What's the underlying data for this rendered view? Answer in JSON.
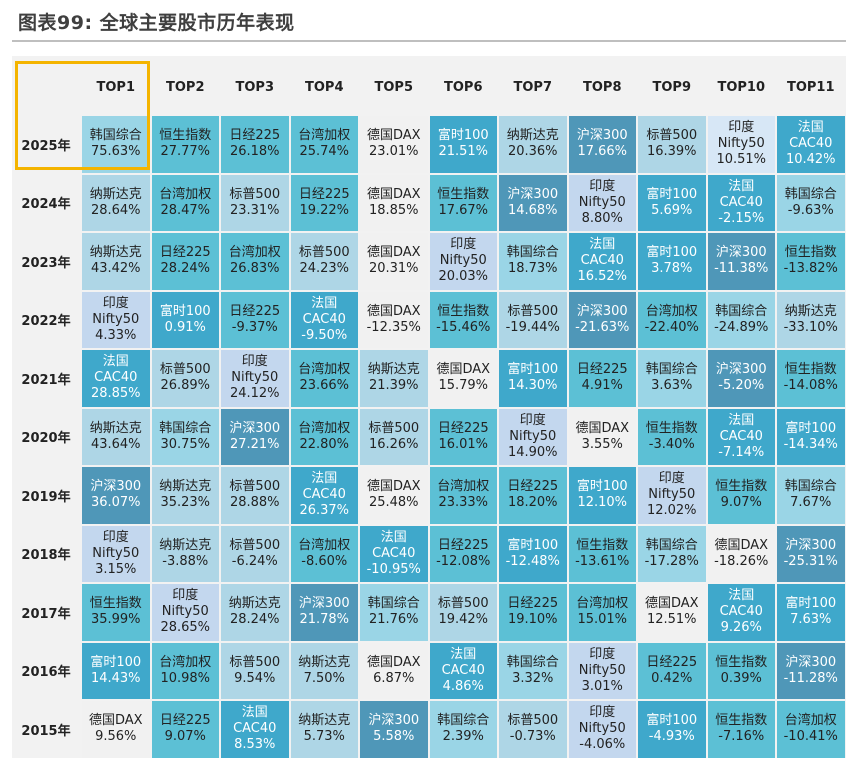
{
  "title": "图表99: 全球主要股市历年表现",
  "colors": {
    "level1": "#f1f1f1",
    "level2": "#d7e7f6",
    "level3": "#c3d7ee",
    "level4": "#aed6e6",
    "level5": "#9ad5e6",
    "level6": "#5cc0d5",
    "level7": "#3fa8cb",
    "level8": "#4f97b8",
    "level9": "#6b8fa8",
    "highlight": "#f4b400"
  },
  "chart_data": {
    "type": "table",
    "title": "图表99: 全球主要股市历年表现",
    "columns": [
      "TOP1",
      "TOP2",
      "TOP3",
      "TOP4",
      "TOP5",
      "TOP6",
      "TOP7",
      "TOP8",
      "TOP9",
      "TOP10",
      "TOP11"
    ],
    "highlighted_cell": {
      "year": "2025年",
      "column": "TOP1"
    },
    "rows": [
      {
        "year": "2025年",
        "cells": [
          {
            "lines": [
              "韩国综合",
              "75.63%"
            ],
            "color": "level5"
          },
          {
            "lines": [
              "恒生指数",
              "27.77%"
            ],
            "color": "level6"
          },
          {
            "lines": [
              "日经225",
              "26.18%"
            ],
            "color": "level6"
          },
          {
            "lines": [
              "台湾加权",
              "25.74%"
            ],
            "color": "level6"
          },
          {
            "lines": [
              "德国DAX",
              "23.01%"
            ],
            "color": "level1"
          },
          {
            "lines": [
              "富时100",
              "21.51%"
            ],
            "color": "level7"
          },
          {
            "lines": [
              "纳斯达克",
              "20.36%"
            ],
            "color": "level4"
          },
          {
            "lines": [
              "沪深300",
              "17.66%"
            ],
            "color": "level8"
          },
          {
            "lines": [
              "标普500",
              "16.39%"
            ],
            "color": "level4"
          },
          {
            "lines": [
              "印度",
              "Nifty50",
              "10.51%"
            ],
            "color": "level2"
          },
          {
            "lines": [
              "法国",
              "CAC40",
              "10.42%"
            ],
            "color": "level7"
          }
        ]
      },
      {
        "year": "2024年",
        "cells": [
          {
            "lines": [
              "纳斯达克",
              "28.64%"
            ],
            "color": "level4"
          },
          {
            "lines": [
              "台湾加权",
              "28.47%"
            ],
            "color": "level6"
          },
          {
            "lines": [
              "标普500",
              "23.31%"
            ],
            "color": "level4"
          },
          {
            "lines": [
              "日经225",
              "19.22%"
            ],
            "color": "level6"
          },
          {
            "lines": [
              "德国DAX",
              "18.85%"
            ],
            "color": "level1"
          },
          {
            "lines": [
              "恒生指数",
              "17.67%"
            ],
            "color": "level6"
          },
          {
            "lines": [
              "沪深300",
              "14.68%"
            ],
            "color": "level8"
          },
          {
            "lines": [
              "印度",
              "Nifty50",
              "8.80%"
            ],
            "color": "level3"
          },
          {
            "lines": [
              "富时100",
              "5.69%"
            ],
            "color": "level7"
          },
          {
            "lines": [
              "法国",
              "CAC40",
              "-2.15%"
            ],
            "color": "level7"
          },
          {
            "lines": [
              "韩国综合",
              "-9.63%"
            ],
            "color": "level5"
          }
        ]
      },
      {
        "year": "2023年",
        "cells": [
          {
            "lines": [
              "纳斯达克",
              "43.42%"
            ],
            "color": "level4"
          },
          {
            "lines": [
              "日经225",
              "28.24%"
            ],
            "color": "level6"
          },
          {
            "lines": [
              "台湾加权",
              "26.83%"
            ],
            "color": "level6"
          },
          {
            "lines": [
              "标普500",
              "24.23%"
            ],
            "color": "level4"
          },
          {
            "lines": [
              "德国DAX",
              "20.31%"
            ],
            "color": "level1"
          },
          {
            "lines": [
              "印度",
              "Nifty50",
              "20.03%"
            ],
            "color": "level3"
          },
          {
            "lines": [
              "韩国综合",
              "18.73%"
            ],
            "color": "level5"
          },
          {
            "lines": [
              "法国",
              "CAC40",
              "16.52%"
            ],
            "color": "level7"
          },
          {
            "lines": [
              "富时100",
              "3.78%"
            ],
            "color": "level7"
          },
          {
            "lines": [
              "沪深300",
              "-11.38%"
            ],
            "color": "level8"
          },
          {
            "lines": [
              "恒生指数",
              "-13.82%"
            ],
            "color": "level6"
          }
        ]
      },
      {
        "year": "2022年",
        "cells": [
          {
            "lines": [
              "印度",
              "Nifty50",
              "4.33%"
            ],
            "color": "level3"
          },
          {
            "lines": [
              "富时100",
              "0.91%"
            ],
            "color": "level7"
          },
          {
            "lines": [
              "日经225",
              "-9.37%"
            ],
            "color": "level6"
          },
          {
            "lines": [
              "法国",
              "CAC40",
              "-9.50%"
            ],
            "color": "level7"
          },
          {
            "lines": [
              "德国DAX",
              "-12.35%"
            ],
            "color": "level1"
          },
          {
            "lines": [
              "恒生指数",
              "-15.46%"
            ],
            "color": "level6"
          },
          {
            "lines": [
              "标普500",
              "-19.44%"
            ],
            "color": "level4"
          },
          {
            "lines": [
              "沪深300",
              "-21.63%"
            ],
            "color": "level8"
          },
          {
            "lines": [
              "台湾加权",
              "-22.40%"
            ],
            "color": "level6"
          },
          {
            "lines": [
              "韩国综合",
              "-24.89%"
            ],
            "color": "level5"
          },
          {
            "lines": [
              "纳斯达克",
              "-33.10%"
            ],
            "color": "level4"
          }
        ]
      },
      {
        "year": "2021年",
        "cells": [
          {
            "lines": [
              "法国",
              "CAC40",
              "28.85%"
            ],
            "color": "level7"
          },
          {
            "lines": [
              "标普500",
              "26.89%"
            ],
            "color": "level4"
          },
          {
            "lines": [
              "印度",
              "Nifty50",
              "24.12%"
            ],
            "color": "level3"
          },
          {
            "lines": [
              "台湾加权",
              "23.66%"
            ],
            "color": "level6"
          },
          {
            "lines": [
              "纳斯达克",
              "21.39%"
            ],
            "color": "level4"
          },
          {
            "lines": [
              "德国DAX",
              "15.79%"
            ],
            "color": "level1"
          },
          {
            "lines": [
              "富时100",
              "14.30%"
            ],
            "color": "level7"
          },
          {
            "lines": [
              "日经225",
              "4.91%"
            ],
            "color": "level6"
          },
          {
            "lines": [
              "韩国综合",
              "3.63%"
            ],
            "color": "level5"
          },
          {
            "lines": [
              "沪深300",
              "-5.20%"
            ],
            "color": "level8"
          },
          {
            "lines": [
              "恒生指数",
              "-14.08%"
            ],
            "color": "level6"
          }
        ]
      },
      {
        "year": "2020年",
        "cells": [
          {
            "lines": [
              "纳斯达克",
              "43.64%"
            ],
            "color": "level4"
          },
          {
            "lines": [
              "韩国综合",
              "30.75%"
            ],
            "color": "level5"
          },
          {
            "lines": [
              "沪深300",
              "27.21%"
            ],
            "color": "level8"
          },
          {
            "lines": [
              "台湾加权",
              "22.80%"
            ],
            "color": "level6"
          },
          {
            "lines": [
              "标普500",
              "16.26%"
            ],
            "color": "level4"
          },
          {
            "lines": [
              "日经225",
              "16.01%"
            ],
            "color": "level6"
          },
          {
            "lines": [
              "印度",
              "Nifty50",
              "14.90%"
            ],
            "color": "level3"
          },
          {
            "lines": [
              "德国DAX",
              "3.55%"
            ],
            "color": "level1"
          },
          {
            "lines": [
              "恒生指数",
              "-3.40%"
            ],
            "color": "level6"
          },
          {
            "lines": [
              "法国",
              "CAC40",
              "-7.14%"
            ],
            "color": "level7"
          },
          {
            "lines": [
              "富时100",
              "-14.34%"
            ],
            "color": "level7"
          }
        ]
      },
      {
        "year": "2019年",
        "cells": [
          {
            "lines": [
              "沪深300",
              "36.07%"
            ],
            "color": "level8"
          },
          {
            "lines": [
              "纳斯达克",
              "35.23%"
            ],
            "color": "level4"
          },
          {
            "lines": [
              "标普500",
              "28.88%"
            ],
            "color": "level4"
          },
          {
            "lines": [
              "法国",
              "CAC40",
              "26.37%"
            ],
            "color": "level7"
          },
          {
            "lines": [
              "德国DAX",
              "25.48%"
            ],
            "color": "level1"
          },
          {
            "lines": [
              "台湾加权",
              "23.33%"
            ],
            "color": "level6"
          },
          {
            "lines": [
              "日经225",
              "18.20%"
            ],
            "color": "level6"
          },
          {
            "lines": [
              "富时100",
              "12.10%"
            ],
            "color": "level7"
          },
          {
            "lines": [
              "印度",
              "Nifty50",
              "12.02%"
            ],
            "color": "level3"
          },
          {
            "lines": [
              "恒生指数",
              "9.07%"
            ],
            "color": "level6"
          },
          {
            "lines": [
              "韩国综合",
              "7.67%"
            ],
            "color": "level5"
          }
        ]
      },
      {
        "year": "2018年",
        "cells": [
          {
            "lines": [
              "印度",
              "Nifty50",
              "3.15%"
            ],
            "color": "level3"
          },
          {
            "lines": [
              "纳斯达克",
              "-3.88%"
            ],
            "color": "level4"
          },
          {
            "lines": [
              "标普500",
              "-6.24%"
            ],
            "color": "level4"
          },
          {
            "lines": [
              "台湾加权",
              "-8.60%"
            ],
            "color": "level6"
          },
          {
            "lines": [
              "法国",
              "CAC40",
              "-10.95%"
            ],
            "color": "level7"
          },
          {
            "lines": [
              "日经225",
              "-12.08%"
            ],
            "color": "level6"
          },
          {
            "lines": [
              "富时100",
              "-12.48%"
            ],
            "color": "level7"
          },
          {
            "lines": [
              "恒生指数",
              "-13.61%"
            ],
            "color": "level6"
          },
          {
            "lines": [
              "韩国综合",
              "-17.28%"
            ],
            "color": "level5"
          },
          {
            "lines": [
              "德国DAX",
              "-18.26%"
            ],
            "color": "level1"
          },
          {
            "lines": [
              "沪深300",
              "-25.31%"
            ],
            "color": "level8"
          }
        ]
      },
      {
        "year": "2017年",
        "cells": [
          {
            "lines": [
              "恒生指数",
              "35.99%"
            ],
            "color": "level6"
          },
          {
            "lines": [
              "印度",
              "Nifty50",
              "28.65%"
            ],
            "color": "level3"
          },
          {
            "lines": [
              "纳斯达克",
              "28.24%"
            ],
            "color": "level4"
          },
          {
            "lines": [
              "沪深300",
              "21.78%"
            ],
            "color": "level8"
          },
          {
            "lines": [
              "韩国综合",
              "21.76%"
            ],
            "color": "level5"
          },
          {
            "lines": [
              "标普500",
              "19.42%"
            ],
            "color": "level4"
          },
          {
            "lines": [
              "日经225",
              "19.10%"
            ],
            "color": "level6"
          },
          {
            "lines": [
              "台湾加权",
              "15.01%"
            ],
            "color": "level6"
          },
          {
            "lines": [
              "德国DAX",
              "12.51%"
            ],
            "color": "level1"
          },
          {
            "lines": [
              "法国",
              "CAC40",
              "9.26%"
            ],
            "color": "level7"
          },
          {
            "lines": [
              "富时100",
              "7.63%"
            ],
            "color": "level7"
          }
        ]
      },
      {
        "year": "2016年",
        "cells": [
          {
            "lines": [
              "富时100",
              "14.43%"
            ],
            "color": "level7"
          },
          {
            "lines": [
              "台湾加权",
              "10.98%"
            ],
            "color": "level6"
          },
          {
            "lines": [
              "标普500",
              "9.54%"
            ],
            "color": "level4"
          },
          {
            "lines": [
              "纳斯达克",
              "7.50%"
            ],
            "color": "level4"
          },
          {
            "lines": [
              "德国DAX",
              "6.87%"
            ],
            "color": "level1"
          },
          {
            "lines": [
              "法国",
              "CAC40",
              "4.86%"
            ],
            "color": "level7"
          },
          {
            "lines": [
              "韩国综合",
              "3.32%"
            ],
            "color": "level5"
          },
          {
            "lines": [
              "印度",
              "Nifty50",
              "3.01%"
            ],
            "color": "level3"
          },
          {
            "lines": [
              "日经225",
              "0.42%"
            ],
            "color": "level6"
          },
          {
            "lines": [
              "恒生指数",
              "0.39%"
            ],
            "color": "level6"
          },
          {
            "lines": [
              "沪深300",
              "-11.28%"
            ],
            "color": "level8"
          }
        ]
      },
      {
        "year": "2015年",
        "cells": [
          {
            "lines": [
              "德国DAX",
              "9.56%"
            ],
            "color": "level1"
          },
          {
            "lines": [
              "日经225",
              "9.07%"
            ],
            "color": "level6"
          },
          {
            "lines": [
              "法国",
              "CAC40",
              "8.53%"
            ],
            "color": "level7"
          },
          {
            "lines": [
              "纳斯达克",
              "5.73%"
            ],
            "color": "level4"
          },
          {
            "lines": [
              "沪深300",
              "5.58%"
            ],
            "color": "level8"
          },
          {
            "lines": [
              "韩国综合",
              "2.39%"
            ],
            "color": "level5"
          },
          {
            "lines": [
              "标普500",
              "-0.73%"
            ],
            "color": "level4"
          },
          {
            "lines": [
              "印度",
              "Nifty50",
              "-4.06%"
            ],
            "color": "level3"
          },
          {
            "lines": [
              "富时100",
              "-4.93%"
            ],
            "color": "level7"
          },
          {
            "lines": [
              "恒生指数",
              "-7.16%"
            ],
            "color": "level6"
          },
          {
            "lines": [
              "台湾加权",
              "-10.41%"
            ],
            "color": "level6"
          }
        ]
      }
    ]
  }
}
